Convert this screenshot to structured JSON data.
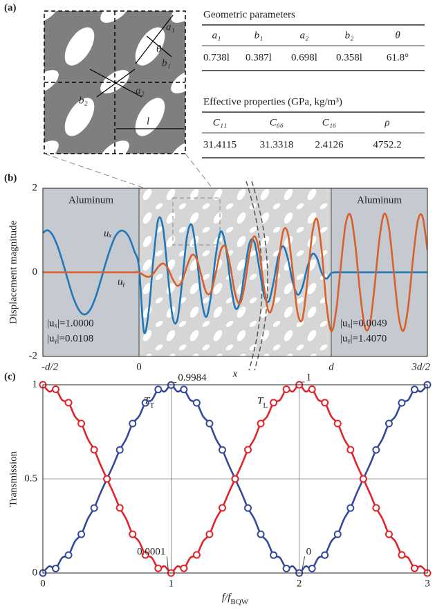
{
  "panel_a": {
    "label": "(a)",
    "unit_cell_labels": [
      "a₁",
      "θ",
      "b₁",
      "b₂",
      "a₂",
      "l"
    ],
    "tables": [
      {
        "title": "Geometric parameters",
        "header": [
          "a₁",
          "b₁",
          "a₂",
          "b₂",
          "θ"
        ],
        "rows": [
          [
            "0.738l",
            "0.387l",
            "0.698l",
            "0.358l",
            "61.8°"
          ]
        ]
      },
      {
        "title": "Effective properties (GPa, kg/m³)",
        "header": [
          "C₁₁",
          "C₆₆",
          "C₁₆",
          "ρ"
        ],
        "rows": [
          [
            "31.4115",
            "31.3318",
            "2.4126",
            "4752.2"
          ]
        ]
      }
    ]
  },
  "chart_data": [
    {
      "type": "line",
      "panel_label": "(b)",
      "ylabel": "Displacement magnitude",
      "xlabel": "x",
      "xlim": [
        -0.5,
        1.5
      ],
      "ylim": [
        -2,
        2
      ],
      "xticks": [
        {
          "value": -0.5,
          "label": "-d/2"
        },
        0,
        {
          "value": 1,
          "label": "d"
        },
        {
          "value": 1.5,
          "label": "3d/2"
        }
      ],
      "yticks": [
        -2,
        0,
        2
      ],
      "grid": false,
      "smooth": true,
      "regions": [
        {
          "x0": -0.5,
          "x1": 0,
          "label": "Aluminum"
        },
        {
          "x0": 1,
          "x1": 1.5,
          "label": "Aluminum"
        }
      ],
      "region_color": "#c5cad0",
      "annotations": [
        "|uₓ|=1.0000",
        "|uᵧ|=0.0108",
        "|uₓ|=0.0049",
        "|uᵧ|=1.4070"
      ],
      "x": [
        -0.5,
        -0.475,
        -0.45,
        -0.425,
        -0.4,
        -0.375,
        -0.35,
        -0.325,
        -0.3,
        -0.275,
        -0.25,
        -0.225,
        -0.2,
        -0.175,
        -0.15,
        -0.125,
        -0.1,
        -0.075,
        -0.05,
        -0.025,
        0,
        0.025,
        0.05,
        0.075,
        0.1,
        0.125,
        0.15,
        0.175,
        0.2,
        0.225,
        0.25,
        0.275,
        0.3,
        0.325,
        0.35,
        0.375,
        0.4,
        0.425,
        0.45,
        0.475,
        0.5,
        0.525,
        0.55,
        0.575,
        0.6,
        0.625,
        0.65,
        0.675,
        0.7,
        0.725,
        0.75,
        0.775,
        0.8,
        0.825,
        0.85,
        0.875,
        0.9,
        0.925,
        0.95,
        0.975,
        1,
        1.025,
        1.05,
        1.075,
        1.1,
        1.125,
        1.15,
        1.175,
        1.2,
        1.225,
        1.25,
        1.275,
        1.3,
        1.325,
        1.35,
        1.375,
        1.4,
        1.425,
        1.45,
        1.475,
        1.5
      ],
      "series": [
        {
          "name": "uₓ",
          "color": "#1f77b8",
          "values": [
            0.94,
            1.0,
            0.89,
            0.64,
            0.29,
            -0.1,
            -0.49,
            -0.79,
            -0.97,
            -0.99,
            -0.86,
            -0.58,
            -0.21,
            0.19,
            0.55,
            0.84,
            0.98,
            0.97,
            0.82,
            0.51,
            0.12,
            -1.4,
            -0.95,
            0.32,
            1.26,
            1.06,
            -0.04,
            -1.07,
            -1.12,
            -0.19,
            0.86,
            1.12,
            0.39,
            -0.64,
            -1.06,
            -0.54,
            0.42,
            0.97,
            0.65,
            -0.22,
            -0.84,
            -0.7,
            0.03,
            0.7,
            0.72,
            0.12,
            -0.54,
            -0.69,
            -0.23,
            0.38,
            0.62,
            0.31,
            -0.24,
            -0.53,
            -0.35,
            0.11,
            0.43,
            0.35,
            -0.01,
            -0.15,
            -0.02,
            0,
            0,
            0,
            0,
            0,
            0,
            0,
            0,
            0,
            0,
            0,
            0,
            0,
            0,
            0,
            0,
            0,
            0,
            0,
            0
          ]
        },
        {
          "name": "uᵧ",
          "color": "#d9602b",
          "values": [
            0,
            0,
            0,
            0,
            0,
            0,
            0,
            0,
            0,
            0,
            0,
            0,
            0,
            0,
            0,
            0,
            0,
            0,
            0,
            0,
            0,
            -0.07,
            -0.11,
            -0.03,
            0.13,
            0.21,
            0.1,
            -0.16,
            -0.32,
            -0.2,
            0.15,
            0.41,
            0.32,
            -0.09,
            -0.48,
            -0.46,
            0.0,
            0.52,
            0.61,
            0.14,
            -0.51,
            -0.74,
            -0.3,
            0.46,
            0.86,
            0.5,
            -0.35,
            -0.94,
            -0.7,
            0.2,
            0.98,
            0.91,
            0.0,
            -0.97,
            -1.11,
            -0.24,
            0.89,
            1.27,
            0.52,
            -0.76,
            -1.4,
            -0.93,
            0.17,
            1.15,
            1.36,
            0.66,
            -0.49,
            -1.3,
            -1.25,
            -0.35,
            0.78,
            1.39,
            1.06,
            0.02,
            -1.03,
            -1.39,
            -0.82,
            0.31,
            1.22,
            1.32,
            0.53
          ]
        }
      ]
    },
    {
      "type": "line",
      "panel_label": "(c)",
      "ylabel": "Transmission",
      "xlabel": "f/f_BQW",
      "xlim": [
        0,
        3
      ],
      "ylim": [
        0,
        1
      ],
      "xticks": [
        0,
        1,
        2,
        3
      ],
      "yticks": [
        0,
        0.5,
        1
      ],
      "grid": true,
      "smooth": true,
      "marker_every": 2,
      "x": [
        0,
        0.05,
        0.1,
        0.15,
        0.2,
        0.25,
        0.3,
        0.35,
        0.4,
        0.45,
        0.5,
        0.55,
        0.6,
        0.65,
        0.7,
        0.75,
        0.8,
        0.85,
        0.9,
        0.95,
        1,
        1.05,
        1.1,
        1.15,
        1.2,
        1.25,
        1.3,
        1.35,
        1.4,
        1.45,
        1.5,
        1.55,
        1.6,
        1.65,
        1.7,
        1.75,
        1.8,
        1.85,
        1.9,
        1.95,
        2,
        2.05,
        2.1,
        2.15,
        2.2,
        2.25,
        2.3,
        2.35,
        2.4,
        2.45,
        2.5,
        2.55,
        2.6,
        2.65,
        2.7,
        2.75,
        2.8,
        2.85,
        2.9,
        2.95,
        3
      ],
      "series": [
        {
          "name": "T_T",
          "color": "#34489c",
          "values": [
            0,
            0.036,
            0.024,
            0.081,
            0.095,
            0.168,
            0.206,
            0.287,
            0.345,
            0.426,
            0.5,
            0.574,
            0.654,
            0.713,
            0.794,
            0.832,
            0.904,
            0.919,
            0.975,
            0.964,
            0.9984,
            0.964,
            0.975,
            0.919,
            0.904,
            0.832,
            0.794,
            0.713,
            0.654,
            0.574,
            0.5,
            0.426,
            0.345,
            0.287,
            0.206,
            0.168,
            0.095,
            0.081,
            0.024,
            0.036,
            0,
            0.036,
            0.024,
            0.081,
            0.095,
            0.168,
            0.206,
            0.287,
            0.345,
            0.426,
            0.5,
            0.574,
            0.654,
            0.713,
            0.794,
            0.832,
            0.904,
            0.919,
            0.975,
            0.964,
            1
          ],
          "value_labels": [
            null,
            null,
            null,
            null,
            null,
            null,
            null,
            null,
            null,
            null,
            null,
            null,
            null,
            null,
            null,
            null,
            null,
            null,
            null,
            null,
            "0.9984",
            null,
            null,
            null,
            null,
            null,
            null,
            null,
            null,
            null,
            null,
            null,
            null,
            null,
            null,
            null,
            null,
            null,
            null,
            null,
            "0",
            null,
            null,
            null,
            null,
            null,
            null,
            null,
            null,
            null,
            null,
            null,
            null,
            null,
            null,
            null,
            null,
            null,
            null,
            null,
            null
          ]
        },
        {
          "name": "T_L",
          "color": "#e3232b",
          "values": [
            1,
            0.964,
            0.976,
            0.919,
            0.905,
            0.832,
            0.794,
            0.713,
            0.655,
            0.574,
            0.5,
            0.426,
            0.346,
            0.287,
            0.206,
            0.168,
            0.096,
            0.081,
            0.025,
            0.036,
            0.0001,
            0.036,
            0.025,
            0.081,
            0.096,
            0.168,
            0.206,
            0.287,
            0.346,
            0.426,
            0.5,
            0.574,
            0.655,
            0.713,
            0.794,
            0.832,
            0.905,
            0.919,
            0.976,
            0.964,
            1,
            0.964,
            0.976,
            0.919,
            0.905,
            0.832,
            0.794,
            0.713,
            0.655,
            0.574,
            0.5,
            0.426,
            0.346,
            0.287,
            0.206,
            0.168,
            0.096,
            0.081,
            0.025,
            0.036,
            0
          ],
          "value_labels": [
            null,
            null,
            null,
            null,
            null,
            null,
            null,
            null,
            null,
            null,
            null,
            null,
            null,
            null,
            null,
            null,
            null,
            null,
            null,
            null,
            "0.0001",
            null,
            null,
            null,
            null,
            null,
            null,
            null,
            null,
            null,
            null,
            null,
            null,
            null,
            null,
            null,
            null,
            null,
            null,
            null,
            "1",
            null,
            null,
            null,
            null,
            null,
            null,
            null,
            null,
            null,
            null,
            null,
            null,
            null,
            null,
            null,
            null,
            null,
            null,
            null,
            null
          ]
        }
      ]
    }
  ]
}
